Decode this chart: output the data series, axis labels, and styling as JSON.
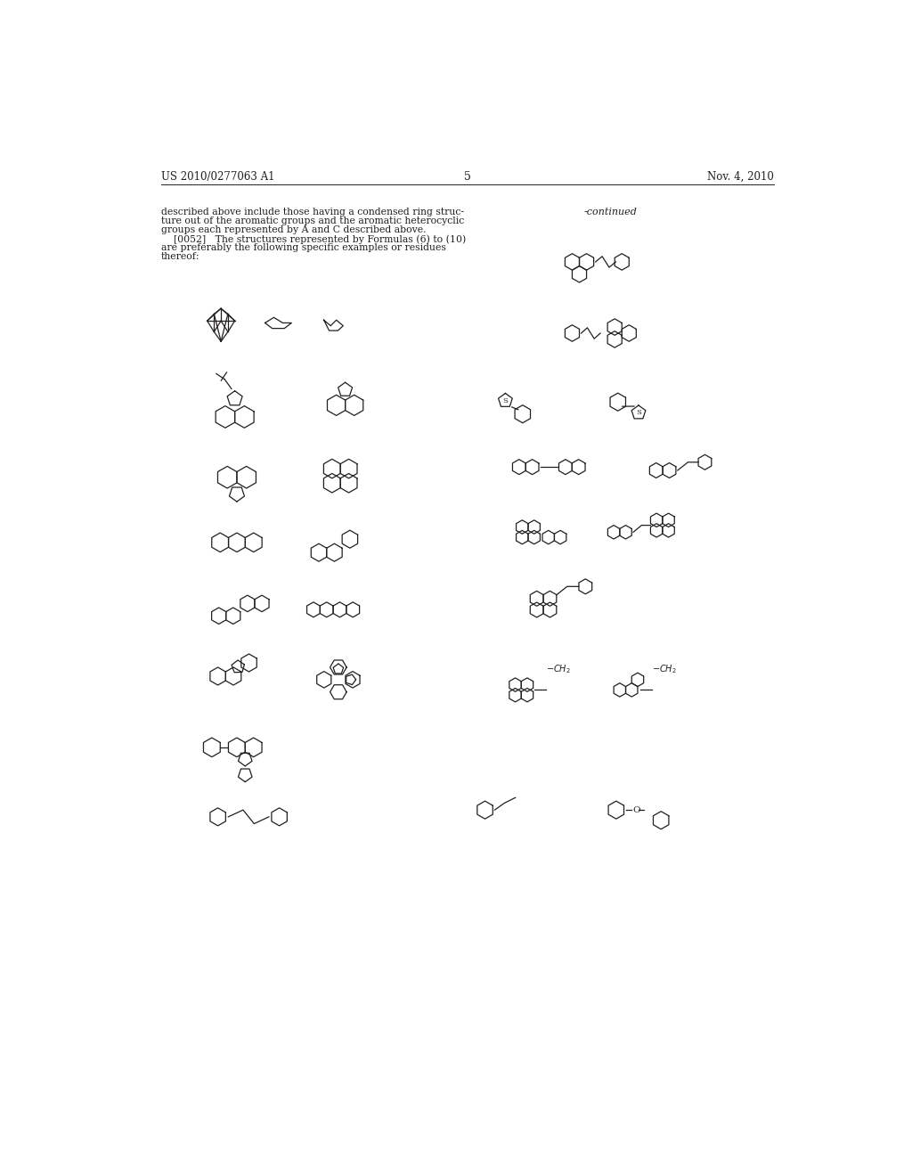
{
  "header_left": "US 2010/0277063 A1",
  "header_right": "Nov. 4, 2010",
  "page_number": "5",
  "continued_label": "-continued",
  "para1_line1": "described above include those having a condensed ring struc-",
  "para1_line2": "ture out of the aromatic groups and the aromatic heterocyclic",
  "para1_line3": "groups each represented by A and C described above.",
  "para2_line1": "    [0052]   The structures represented by Formulas (6) to (10)",
  "para2_line2": "are preferably the following specific examples or residues",
  "para2_line3": "thereof:",
  "bg_color": "#ffffff",
  "text_color": "#231f20",
  "lw": 0.9
}
